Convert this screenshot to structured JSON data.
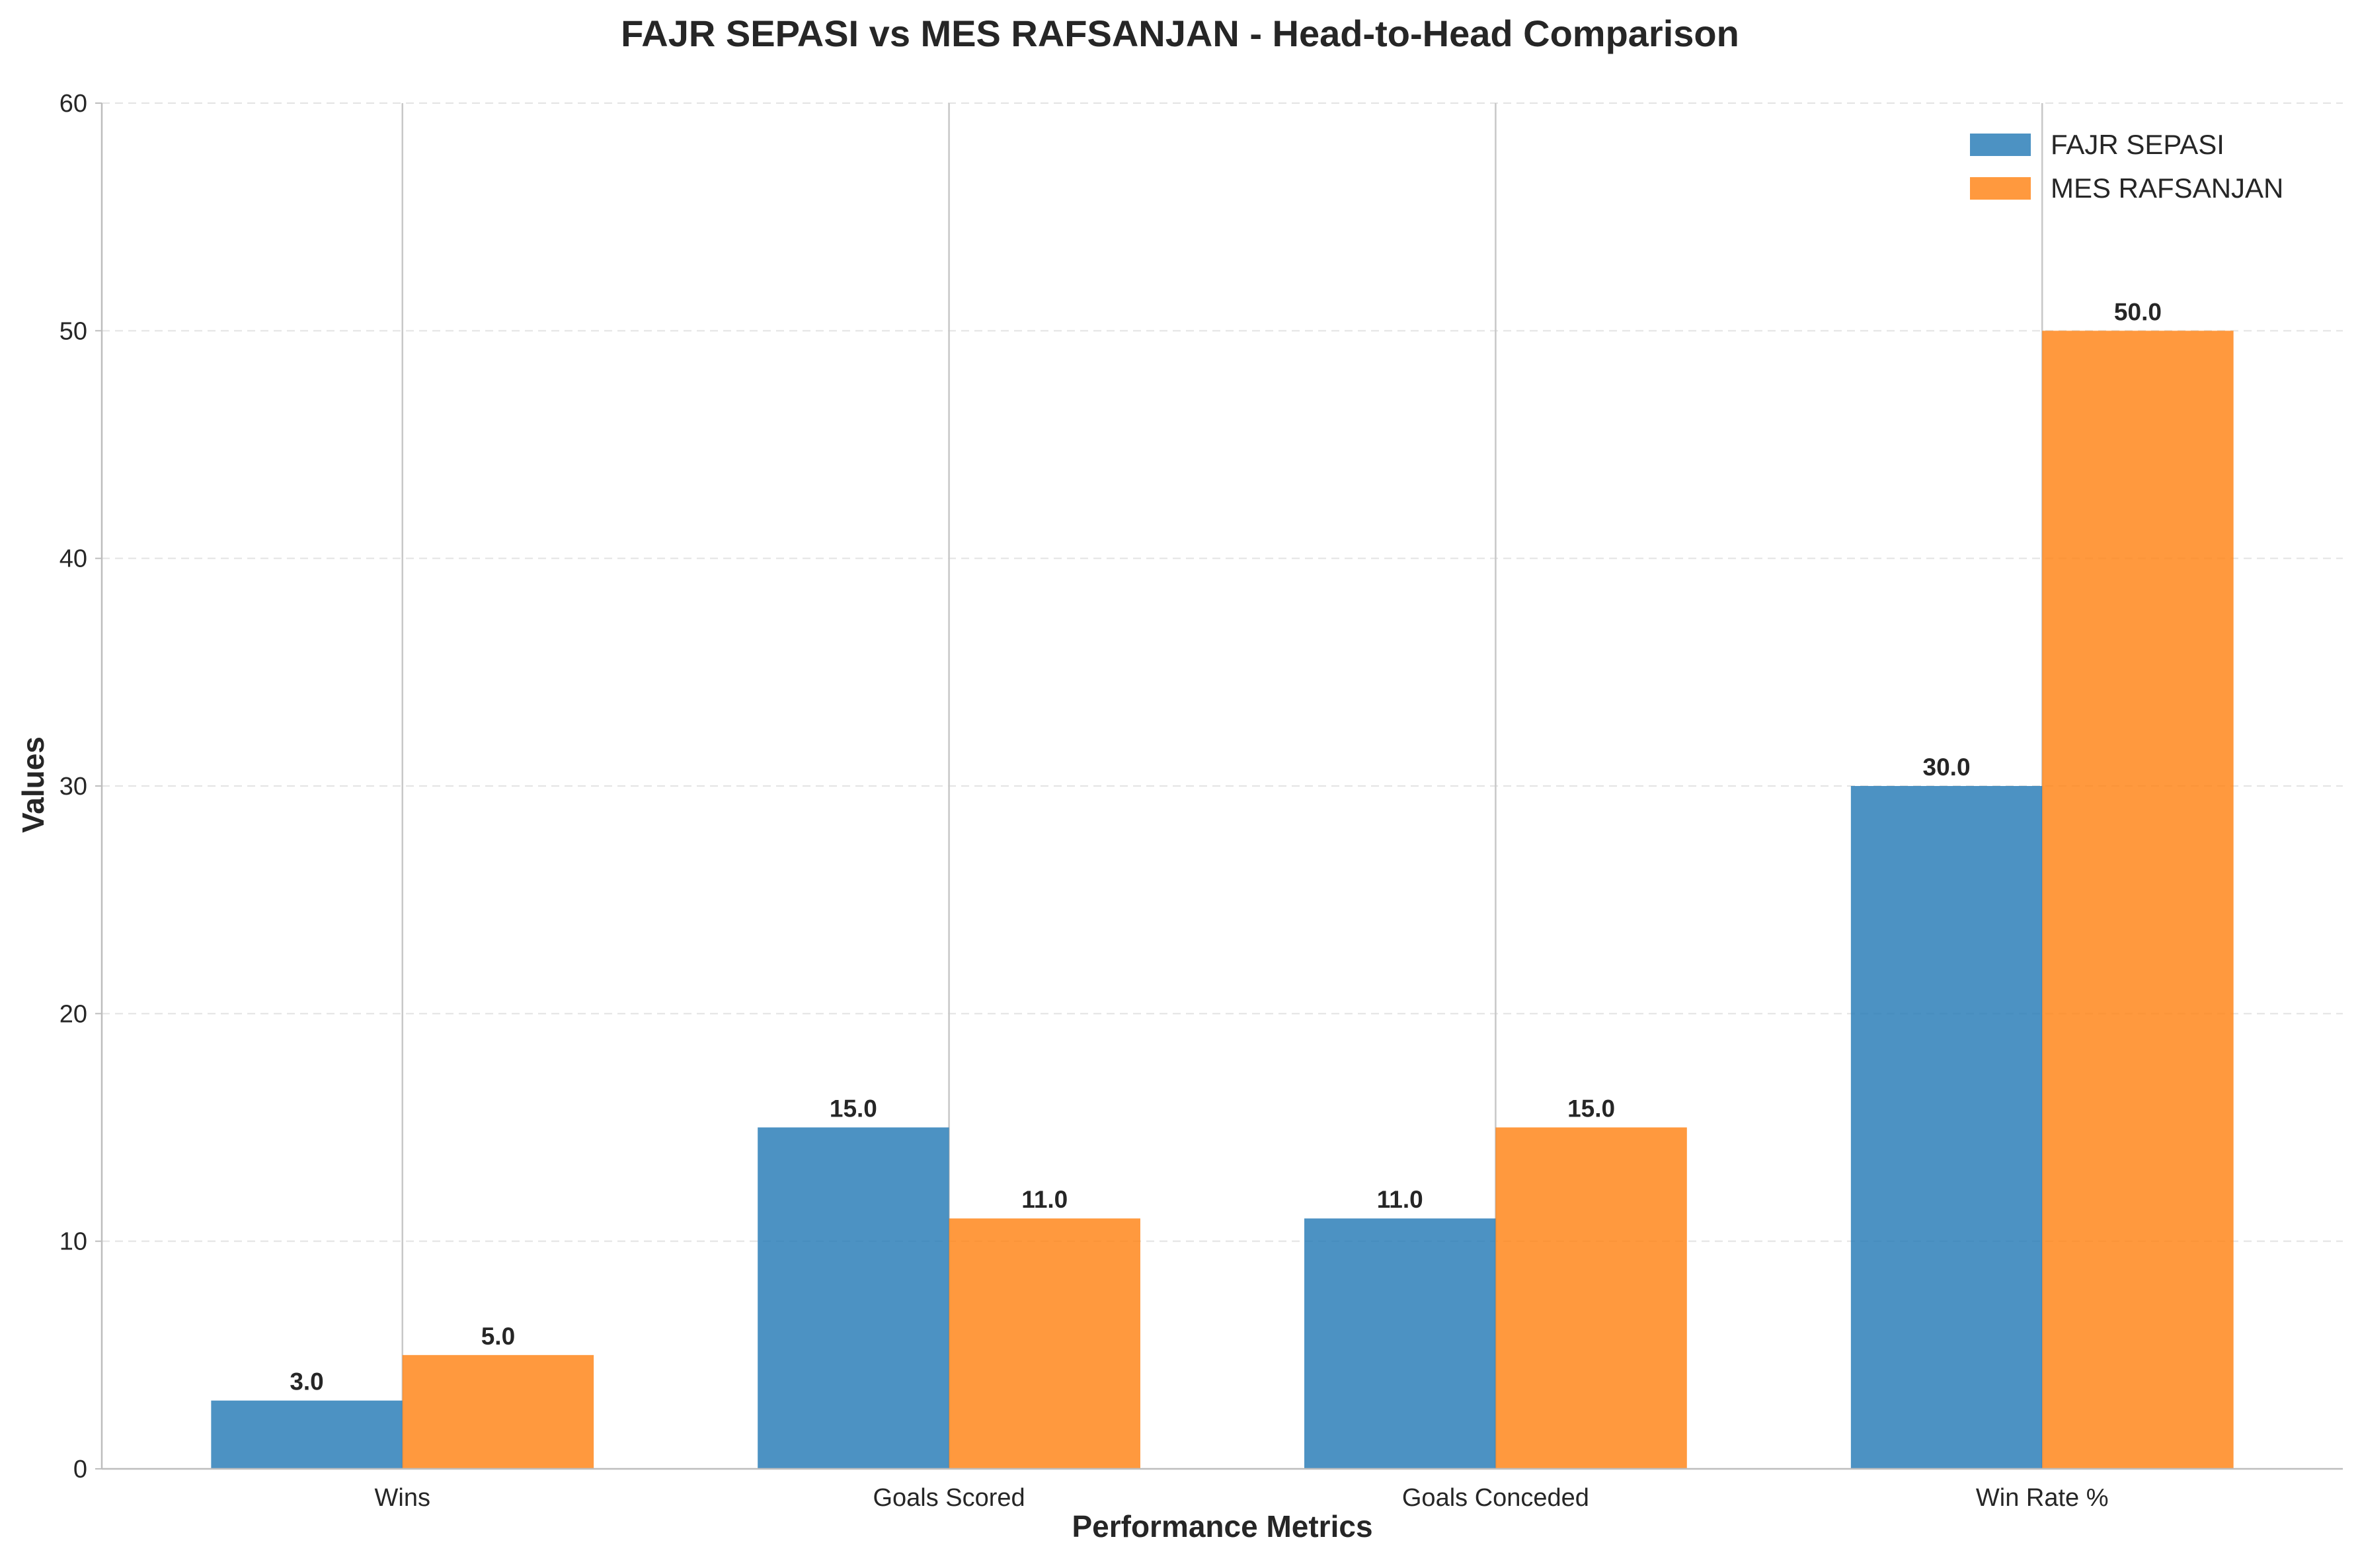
{
  "chart_data": {
    "type": "bar",
    "title": "FAJR SEPASI vs MES RAFSANJAN - Head-to-Head Comparison",
    "xlabel": "Performance Metrics",
    "ylabel": "Values",
    "categories": [
      "Wins",
      "Goals Scored",
      "Goals Conceded",
      "Win Rate %"
    ],
    "series": [
      {
        "name": "FAJR SEPASI",
        "color": "#1f77b4",
        "values": [
          3.0,
          15.0,
          11.0,
          30.0
        ],
        "labels": [
          "3.0",
          "15.0",
          "11.0",
          "30.0"
        ]
      },
      {
        "name": "MES RAFSANJAN",
        "color": "#ff7f0e",
        "values": [
          5.0,
          11.0,
          15.0,
          50.0
        ],
        "labels": [
          "5.0",
          "11.0",
          "15.0",
          "50.0"
        ]
      }
    ],
    "ylim": [
      0,
      60
    ],
    "yticks": [
      0,
      10,
      20,
      30,
      40,
      50,
      60
    ],
    "grid": "horizontal dashed, vertical solid at category centers",
    "legend_position": "top-right"
  }
}
